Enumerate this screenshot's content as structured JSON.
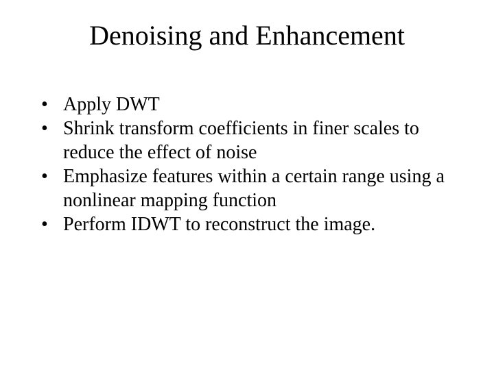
{
  "slide": {
    "title": "Denoising and Enhancement",
    "bullets": [
      "Apply DWT",
      "Shrink transform coefficients in finer scales to reduce the effect of noise",
      "Emphasize features within a certain range using a nonlinear mapping function",
      "Perform IDWT to reconstruct the image."
    ],
    "background_color": "#ffffff",
    "text_color": "#000000",
    "title_fontsize": 40,
    "body_fontsize": 28,
    "font_family": "Times New Roman"
  }
}
